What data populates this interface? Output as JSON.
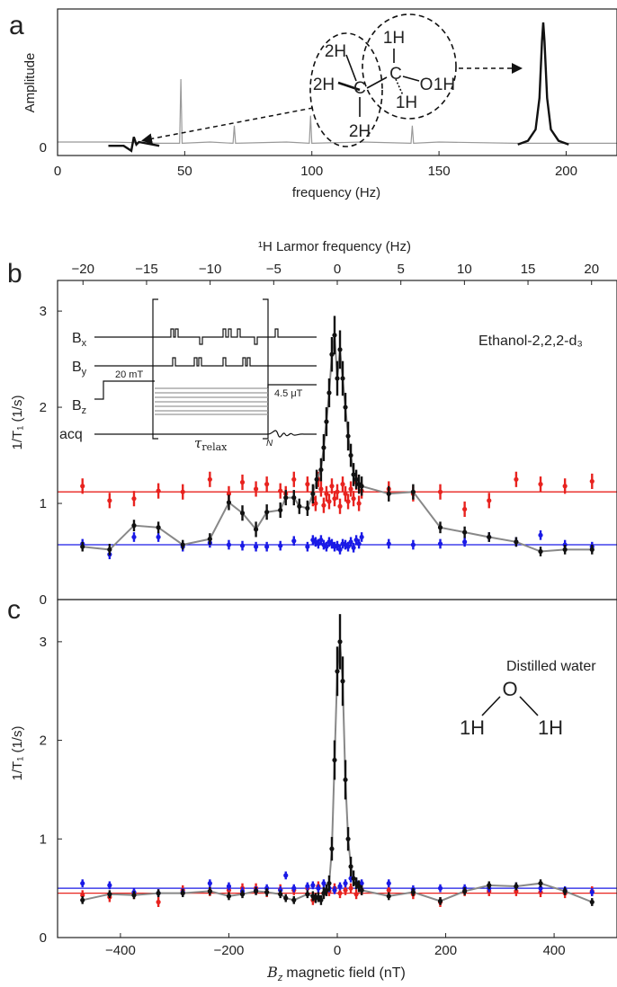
{
  "panel_labels": {
    "a": "a",
    "b": "b",
    "c": "c"
  },
  "chart_data": [
    {
      "id": "a",
      "type": "line",
      "xlabel": "frequency (Hz)",
      "ylabel": "Amplitude",
      "xlim": [
        0,
        220
      ],
      "x_ticks": [
        0,
        50,
        100,
        150,
        200
      ],
      "y_ticks": [
        "0"
      ],
      "series": [
        {
          "color": "#999999",
          "x": [
            0,
            20,
            40,
            48,
            48.5,
            49,
            60,
            69,
            69.5,
            70,
            90,
            99,
            99.5,
            100,
            120,
            139,
            139.5,
            140,
            150,
            180,
            200,
            220
          ],
          "y": [
            0.05,
            0.05,
            0.04,
            0.04,
            0.55,
            0.04,
            0.05,
            0.04,
            0.18,
            0.04,
            0.05,
            0.04,
            0.26,
            0.04,
            0.05,
            0.04,
            0.18,
            0.04,
            0.05,
            0.04,
            0.04,
            0.04
          ]
        },
        {
          "color": "#111111",
          "x": [
            20,
            26,
            29,
            30,
            31,
            32,
            40
          ],
          "y": [
            0.02,
            0.02,
            -0.02,
            0.09,
            0.03,
            0.05,
            0.02
          ]
        },
        {
          "color": "#111111",
          "x": [
            181,
            185,
            188,
            189.5,
            190.5,
            191,
            191.5,
            192.5,
            194,
            197,
            201
          ],
          "y": [
            0.03,
            0.06,
            0.15,
            0.4,
            0.85,
            1.0,
            0.85,
            0.4,
            0.15,
            0.06,
            0.03
          ]
        }
      ],
      "molecule": {
        "carbons": [
          "C",
          "C"
        ],
        "hydrogens": [
          "2H",
          "2H",
          "2H",
          "1H",
          "1H"
        ],
        "oxygen_group": "O",
        "hydroxyl_h": "1H"
      }
    },
    {
      "id": "b",
      "type": "scatter",
      "xlabel_top": "¹H Larmor frequency (Hz)",
      "ylabel": "1/T₁ (1/s)",
      "annotation": "Ethanol-2,2,2-d₃",
      "xlim_top": [
        -22,
        22
      ],
      "x_ticks_top": [
        -20,
        -15,
        -10,
        -5,
        0,
        5,
        10,
        15,
        20
      ],
      "xlim": [
        -516,
        516
      ],
      "ylim": [
        0,
        3.3
      ],
      "y_ticks": [
        0,
        1,
        2,
        3
      ],
      "hlines": [
        {
          "y": 1.12,
          "color": "#e8231f"
        },
        {
          "y": 0.57,
          "color": "#1a1ae6"
        }
      ],
      "series": [
        {
          "color": "#111111",
          "line_color": "#888888",
          "x": [
            -470,
            -420,
            -375,
            -330,
            -285,
            -235,
            -200,
            -175,
            -150,
            -130,
            -105,
            -95,
            -80,
            -70,
            -55,
            -45,
            -38,
            -30,
            -25,
            -20,
            -15,
            -10,
            -5,
            0,
            5,
            10,
            15,
            20,
            25,
            30,
            35,
            40,
            45,
            95,
            140,
            190,
            235,
            280,
            330,
            375,
            420,
            470
          ],
          "y": [
            0.55,
            0.52,
            0.77,
            0.75,
            0.57,
            0.63,
            1.01,
            0.9,
            0.73,
            0.91,
            0.93,
            1.06,
            1.06,
            0.97,
            0.95,
            1.1,
            1.25,
            1.35,
            1.58,
            1.85,
            2.15,
            2.55,
            2.75,
            2.3,
            2.6,
            2.3,
            2.0,
            1.7,
            1.5,
            1.3,
            1.25,
            1.2,
            1.18,
            1.1,
            1.12,
            0.75,
            0.7,
            0.65,
            0.6,
            0.5,
            0.52,
            0.52
          ],
          "yerr": [
            0.05,
            0.06,
            0.06,
            0.06,
            0.05,
            0.06,
            0.08,
            0.08,
            0.08,
            0.08,
            0.08,
            0.08,
            0.08,
            0.08,
            0.08,
            0.1,
            0.1,
            0.12,
            0.14,
            0.15,
            0.15,
            0.18,
            0.2,
            0.18,
            0.2,
            0.18,
            0.15,
            0.15,
            0.12,
            0.12,
            0.1,
            0.1,
            0.1,
            0.08,
            0.08,
            0.06,
            0.06,
            0.05,
            0.05,
            0.05,
            0.05,
            0.05
          ]
        },
        {
          "color": "#e8231f",
          "x": [
            -470,
            -420,
            -375,
            -330,
            -285,
            -235,
            -200,
            -175,
            -150,
            -130,
            -105,
            -95,
            -80,
            -55,
            -45,
            -40,
            -35,
            -30,
            -25,
            -20,
            -15,
            -10,
            -5,
            0,
            5,
            10,
            15,
            20,
            25,
            30,
            35,
            40,
            45,
            95,
            140,
            190,
            235,
            280,
            330,
            375,
            420,
            470
          ],
          "y": [
            1.18,
            1.03,
            1.05,
            1.13,
            1.12,
            1.25,
            1.1,
            1.22,
            1.15,
            1.2,
            1.13,
            1.1,
            1.25,
            1.2,
            1.05,
            1.0,
            1.25,
            1.15,
            0.98,
            1.1,
            1.02,
            1.18,
            1.05,
            1.12,
            0.97,
            1.2,
            1.1,
            1.02,
            1.15,
            1.05,
            1.22,
            1.0,
            1.13,
            1.15,
            1.1,
            1.12,
            0.94,
            1.03,
            1.25,
            1.2,
            1.18,
            1.23
          ],
          "yerr": [
            0.08,
            0.08,
            0.08,
            0.08,
            0.08,
            0.08,
            0.08,
            0.08,
            0.08,
            0.08,
            0.08,
            0.08,
            0.08,
            0.08,
            0.08,
            0.08,
            0.08,
            0.08,
            0.08,
            0.08,
            0.08,
            0.08,
            0.08,
            0.08,
            0.08,
            0.08,
            0.08,
            0.08,
            0.08,
            0.08,
            0.08,
            0.08,
            0.08,
            0.08,
            0.08,
            0.08,
            0.08,
            0.08,
            0.08,
            0.08,
            0.08,
            0.08
          ]
        },
        {
          "color": "#1a1ae6",
          "x": [
            -470,
            -420,
            -375,
            -330,
            -285,
            -235,
            -200,
            -175,
            -150,
            -130,
            -105,
            -80,
            -55,
            -45,
            -40,
            -35,
            -30,
            -25,
            -20,
            -15,
            -10,
            -5,
            0,
            5,
            10,
            15,
            20,
            25,
            30,
            35,
            40,
            45,
            95,
            140,
            190,
            235,
            280,
            330,
            375,
            420,
            470
          ],
          "y": [
            0.58,
            0.47,
            0.65,
            0.65,
            0.55,
            0.59,
            0.57,
            0.56,
            0.55,
            0.55,
            0.56,
            0.61,
            0.55,
            0.62,
            0.6,
            0.58,
            0.62,
            0.57,
            0.55,
            0.6,
            0.58,
            0.55,
            0.56,
            0.52,
            0.58,
            0.57,
            0.55,
            0.6,
            0.54,
            0.62,
            0.58,
            0.65,
            0.58,
            0.57,
            0.58,
            0.6,
            0.65,
            0.6,
            0.67,
            0.57,
            0.55
          ],
          "yerr": [
            0.05,
            0.05,
            0.05,
            0.05,
            0.05,
            0.05,
            0.05,
            0.05,
            0.05,
            0.05,
            0.05,
            0.05,
            0.05,
            0.05,
            0.05,
            0.05,
            0.05,
            0.05,
            0.05,
            0.05,
            0.05,
            0.05,
            0.05,
            0.05,
            0.05,
            0.05,
            0.05,
            0.05,
            0.05,
            0.05,
            0.05,
            0.05,
            0.05,
            0.05,
            0.05,
            0.05,
            0.05,
            0.05,
            0.05,
            0.05,
            0.05
          ]
        }
      ],
      "sequence_inset": {
        "rows": [
          "B",
          "B",
          "B",
          "acq"
        ],
        "row_subscripts": [
          "x",
          "y",
          "z",
          ""
        ],
        "pre_field": "20 mT",
        "post_field": "4.5 μT",
        "tau_symbol": "τ",
        "tau_subscript": "relax",
        "repeat_label": "N"
      }
    },
    {
      "id": "c",
      "type": "scatter",
      "xlabel_prefix": "B",
      "xlabel_sub": "z",
      "xlabel_suffix": "magnetic field (nT)",
      "ylabel": "1/T₁ (1/s)",
      "annotation": "Distilled water",
      "molecule": {
        "o": "O",
        "h1": "1H",
        "h2": "1H"
      },
      "xlim": [
        -516,
        516
      ],
      "x_ticks": [
        -400,
        -200,
        0,
        200,
        400
      ],
      "ylim": [
        0,
        3.4
      ],
      "y_ticks": [
        0,
        1,
        2,
        3
      ],
      "hlines": [
        {
          "y": 0.5,
          "color": "#1a1ae6"
        },
        {
          "y": 0.45,
          "color": "#e8231f"
        }
      ],
      "series": [
        {
          "color": "#111111",
          "line_color": "#888888",
          "x": [
            -470,
            -420,
            -375,
            -330,
            -285,
            -235,
            -200,
            -175,
            -150,
            -130,
            -105,
            -95,
            -80,
            -55,
            -45,
            -40,
            -35,
            -30,
            -25,
            -20,
            -15,
            -10,
            -5,
            0,
            5,
            10,
            15,
            20,
            25,
            30,
            35,
            40,
            45,
            95,
            140,
            190,
            235,
            280,
            330,
            375,
            420,
            470
          ],
          "y": [
            0.38,
            0.44,
            0.43,
            0.45,
            0.45,
            0.47,
            0.42,
            0.44,
            0.47,
            0.46,
            0.44,
            0.4,
            0.38,
            0.44,
            0.42,
            0.4,
            0.41,
            0.38,
            0.45,
            0.48,
            0.55,
            0.9,
            1.8,
            2.7,
            3.0,
            2.6,
            1.6,
            1.0,
            0.72,
            0.6,
            0.55,
            0.52,
            0.48,
            0.42,
            0.46,
            0.37,
            0.47,
            0.53,
            0.52,
            0.55,
            0.47,
            0.36
          ],
          "yerr": [
            0.04,
            0.04,
            0.04,
            0.04,
            0.04,
            0.04,
            0.04,
            0.04,
            0.04,
            0.04,
            0.04,
            0.04,
            0.04,
            0.04,
            0.05,
            0.05,
            0.05,
            0.05,
            0.06,
            0.06,
            0.08,
            0.12,
            0.2,
            0.25,
            0.28,
            0.25,
            0.2,
            0.12,
            0.1,
            0.08,
            0.06,
            0.06,
            0.05,
            0.04,
            0.04,
            0.04,
            0.04,
            0.04,
            0.04,
            0.04,
            0.04,
            0.04
          ]
        },
        {
          "color": "#e8231f",
          "x": [
            -470,
            -420,
            -375,
            -330,
            -285,
            -235,
            -200,
            -175,
            -150,
            -130,
            -105,
            -80,
            -55,
            -45,
            -35,
            -25,
            -15,
            -5,
            5,
            15,
            25,
            35,
            45,
            95,
            140,
            190,
            235,
            280,
            330,
            375,
            420,
            470
          ],
          "y": [
            0.43,
            0.41,
            0.44,
            0.36,
            0.48,
            0.47,
            0.48,
            0.5,
            0.5,
            0.46,
            0.49,
            0.48,
            0.5,
            0.38,
            0.52,
            0.45,
            0.47,
            0.5,
            0.45,
            0.48,
            0.5,
            0.44,
            0.48,
            0.48,
            0.44,
            0.36,
            0.47,
            0.47,
            0.47,
            0.46,
            0.45,
            0.47
          ],
          "yerr": [
            0.05,
            0.05,
            0.05,
            0.05,
            0.05,
            0.05,
            0.05,
            0.05,
            0.05,
            0.05,
            0.05,
            0.05,
            0.05,
            0.05,
            0.05,
            0.05,
            0.05,
            0.05,
            0.05,
            0.05,
            0.05,
            0.05,
            0.05,
            0.05,
            0.05,
            0.05,
            0.05,
            0.05,
            0.05,
            0.05,
            0.05,
            0.05
          ]
        },
        {
          "color": "#1a1ae6",
          "x": [
            -470,
            -420,
            -375,
            -330,
            -285,
            -235,
            -200,
            -175,
            -150,
            -130,
            -105,
            -95,
            -80,
            -55,
            -45,
            -35,
            -25,
            -15,
            -5,
            5,
            15,
            25,
            35,
            45,
            95,
            140,
            190,
            235,
            280,
            330,
            375,
            420,
            470
          ],
          "y": [
            0.55,
            0.53,
            0.46,
            0.45,
            0.46,
            0.55,
            0.52,
            0.47,
            0.48,
            0.5,
            0.48,
            0.63,
            0.5,
            0.52,
            0.53,
            0.5,
            0.55,
            0.5,
            0.48,
            0.52,
            0.55,
            0.6,
            0.56,
            0.55,
            0.55,
            0.49,
            0.5,
            0.5,
            0.5,
            0.52,
            0.5,
            0.48,
            0.46
          ],
          "yerr": [
            0.04,
            0.04,
            0.04,
            0.04,
            0.04,
            0.04,
            0.04,
            0.04,
            0.04,
            0.04,
            0.04,
            0.04,
            0.04,
            0.04,
            0.04,
            0.04,
            0.04,
            0.04,
            0.04,
            0.04,
            0.04,
            0.04,
            0.04,
            0.04,
            0.04,
            0.04,
            0.04,
            0.04,
            0.04,
            0.04,
            0.04,
            0.04,
            0.04
          ]
        }
      ]
    }
  ]
}
